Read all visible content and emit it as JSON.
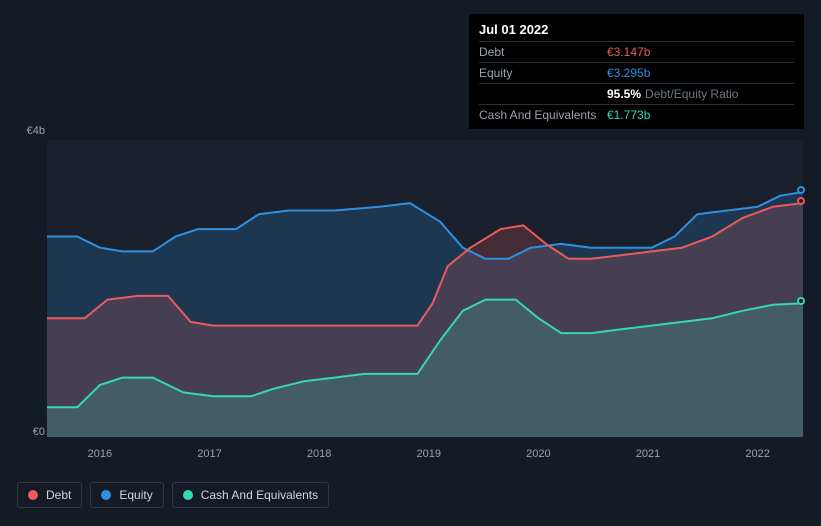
{
  "chart": {
    "type": "area",
    "background_color": "#1a212c",
    "page_background": "#151b24",
    "ylabel_top": "€4b",
    "ylabel_bottom": "€0",
    "ylim": [
      0,
      4
    ],
    "xlim": [
      2015.5,
      2022.6
    ],
    "x_ticks": [
      "2016",
      "2017",
      "2018",
      "2019",
      "2020",
      "2021",
      "2022"
    ],
    "x_tick_positions": [
      0.07,
      0.215,
      0.36,
      0.505,
      0.65,
      0.795,
      0.94
    ],
    "series": {
      "debt": {
        "label": "Debt",
        "color": "#eb5b5b",
        "fill_color": "#eb5b5b",
        "fill_opacity": 0.2,
        "line_width": 2,
        "points": [
          [
            0.0,
            1.6
          ],
          [
            0.05,
            1.6
          ],
          [
            0.08,
            1.85
          ],
          [
            0.12,
            1.9
          ],
          [
            0.16,
            1.9
          ],
          [
            0.19,
            1.55
          ],
          [
            0.22,
            1.5
          ],
          [
            0.3,
            1.5
          ],
          [
            0.35,
            1.5
          ],
          [
            0.4,
            1.5
          ],
          [
            0.45,
            1.5
          ],
          [
            0.49,
            1.5
          ],
          [
            0.51,
            1.8
          ],
          [
            0.53,
            2.3
          ],
          [
            0.56,
            2.55
          ],
          [
            0.6,
            2.8
          ],
          [
            0.63,
            2.85
          ],
          [
            0.66,
            2.6
          ],
          [
            0.69,
            2.4
          ],
          [
            0.72,
            2.4
          ],
          [
            0.76,
            2.45
          ],
          [
            0.8,
            2.5
          ],
          [
            0.84,
            2.55
          ],
          [
            0.88,
            2.7
          ],
          [
            0.92,
            2.95
          ],
          [
            0.96,
            3.1
          ],
          [
            1.0,
            3.15
          ]
        ]
      },
      "equity": {
        "label": "Equity",
        "color": "#2f8fe0",
        "fill_color": "#2f8fe0",
        "fill_opacity": 0.2,
        "line_width": 2,
        "points": [
          [
            0.0,
            2.7
          ],
          [
            0.04,
            2.7
          ],
          [
            0.07,
            2.55
          ],
          [
            0.1,
            2.5
          ],
          [
            0.14,
            2.5
          ],
          [
            0.17,
            2.7
          ],
          [
            0.2,
            2.8
          ],
          [
            0.25,
            2.8
          ],
          [
            0.28,
            3.0
          ],
          [
            0.32,
            3.05
          ],
          [
            0.38,
            3.05
          ],
          [
            0.44,
            3.1
          ],
          [
            0.48,
            3.15
          ],
          [
            0.52,
            2.9
          ],
          [
            0.55,
            2.55
          ],
          [
            0.58,
            2.4
          ],
          [
            0.61,
            2.4
          ],
          [
            0.64,
            2.55
          ],
          [
            0.68,
            2.6
          ],
          [
            0.72,
            2.55
          ],
          [
            0.76,
            2.55
          ],
          [
            0.8,
            2.55
          ],
          [
            0.83,
            2.7
          ],
          [
            0.86,
            3.0
          ],
          [
            0.9,
            3.05
          ],
          [
            0.94,
            3.1
          ],
          [
            0.97,
            3.25
          ],
          [
            1.0,
            3.3
          ]
        ]
      },
      "cash": {
        "label": "Cash And Equivalents",
        "color": "#35d7b7",
        "fill_color": "#35d7b7",
        "fill_opacity": 0.2,
        "line_width": 2,
        "points": [
          [
            0.0,
            0.4
          ],
          [
            0.04,
            0.4
          ],
          [
            0.07,
            0.7
          ],
          [
            0.1,
            0.8
          ],
          [
            0.14,
            0.8
          ],
          [
            0.18,
            0.6
          ],
          [
            0.22,
            0.55
          ],
          [
            0.27,
            0.55
          ],
          [
            0.3,
            0.65
          ],
          [
            0.34,
            0.75
          ],
          [
            0.38,
            0.8
          ],
          [
            0.42,
            0.85
          ],
          [
            0.46,
            0.85
          ],
          [
            0.49,
            0.85
          ],
          [
            0.52,
            1.3
          ],
          [
            0.55,
            1.7
          ],
          [
            0.58,
            1.85
          ],
          [
            0.62,
            1.85
          ],
          [
            0.65,
            1.6
          ],
          [
            0.68,
            1.4
          ],
          [
            0.72,
            1.4
          ],
          [
            0.76,
            1.45
          ],
          [
            0.8,
            1.5
          ],
          [
            0.84,
            1.55
          ],
          [
            0.88,
            1.6
          ],
          [
            0.92,
            1.7
          ],
          [
            0.96,
            1.78
          ],
          [
            1.0,
            1.8
          ]
        ]
      }
    },
    "end_dots": [
      {
        "series": "equity",
        "y": 3.3,
        "stroke": "#2f8fe0"
      },
      {
        "series": "debt",
        "y": 3.15,
        "stroke": "#eb5b5b"
      },
      {
        "series": "cash",
        "y": 1.8,
        "stroke": "#35d7b7"
      }
    ]
  },
  "tooltip": {
    "date": "Jul 01 2022",
    "rows": [
      {
        "label": "Debt",
        "value": "€3.147b",
        "class": "debt"
      },
      {
        "label": "Equity",
        "value": "€3.295b",
        "class": "equity"
      }
    ],
    "ratio_pct": "95.5%",
    "ratio_label": "Debt/Equity Ratio",
    "cash_label": "Cash And Equivalents",
    "cash_value": "€1.773b"
  },
  "legend": {
    "items": [
      {
        "key": "debt",
        "label": "Debt"
      },
      {
        "key": "equity",
        "label": "Equity"
      },
      {
        "key": "cash",
        "label": "Cash And Equivalents"
      }
    ]
  }
}
